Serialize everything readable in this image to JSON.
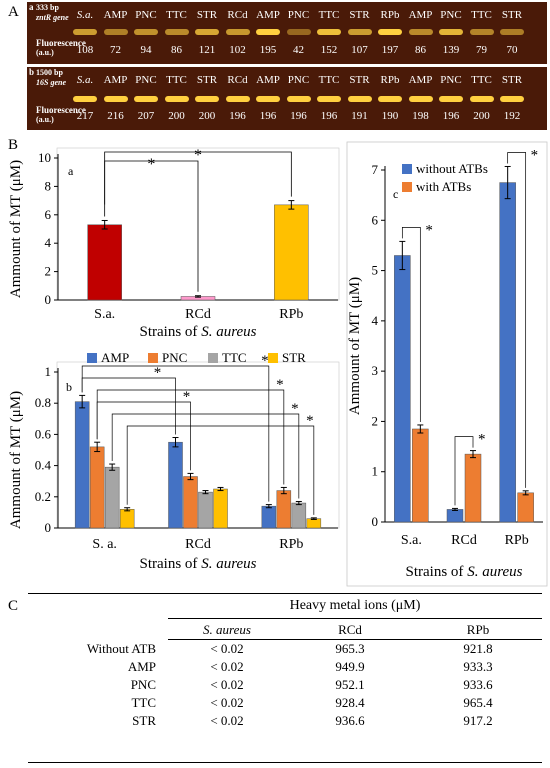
{
  "panels": {
    "A": "A",
    "B": "B",
    "C": "C"
  },
  "gel_a": {
    "sub": "a",
    "marker": "333 bp",
    "gene_label": "zntR gene",
    "lanes": [
      "S.a.",
      "AMP",
      "PNC",
      "TTC",
      "STR",
      "RCd",
      "AMP",
      "PNC",
      "TTC",
      "STR",
      "RPb",
      "AMP",
      "PNC",
      "TTC",
      "STR"
    ],
    "fluor_label": "Fluorescence",
    "unit_label": "(a.u.)",
    "values": [
      "108",
      "72",
      "94",
      "86",
      "121",
      "102",
      "195",
      "42",
      "152",
      "107",
      "197",
      "86",
      "139",
      "79",
      "70"
    ]
  },
  "gel_b": {
    "sub": "b",
    "marker": "1500 bp",
    "gene_label": "16S gene",
    "lanes": [
      "S.a.",
      "AMP",
      "PNC",
      "TTC",
      "STR",
      "RCd",
      "AMP",
      "PNC",
      "TTC",
      "STR",
      "RPb",
      "AMP",
      "PNC",
      "TTC",
      "STR"
    ],
    "fluor_label": "Fluorescence",
    "unit_label": "(a.u.)",
    "values": [
      "217",
      "216",
      "207",
      "200",
      "200",
      "196",
      "196",
      "196",
      "196",
      "191",
      "190",
      "198",
      "196",
      "200",
      "192"
    ]
  },
  "chart_data": [
    {
      "type": "bar",
      "panel": "a",
      "categories": [
        "S.a.",
        "RCd",
        "RPb"
      ],
      "values": [
        5.3,
        0.25,
        6.7
      ],
      "errors": [
        0.3,
        0.05,
        0.3
      ],
      "colors": [
        "#c00000",
        "#ff99cc",
        "#ffc000"
      ],
      "ylabel": "Ammount of MT (μM)",
      "xlabel_prefix": "Strains of ",
      "xlabel_italic": "S. aureus",
      "ylim": [
        0,
        10
      ],
      "yticks": [
        "0",
        "2",
        "4",
        "6",
        "8",
        "10"
      ],
      "significance": [
        "*",
        "*"
      ]
    },
    {
      "type": "bar",
      "panel": "b",
      "categories": [
        "S. a.",
        "RCd",
        "RPb"
      ],
      "series": [
        {
          "name": "AMP",
          "color": "#4472c4",
          "values": [
            0.81,
            0.55,
            0.14
          ],
          "errors": [
            0.04,
            0.03,
            0.01
          ]
        },
        {
          "name": "PNC",
          "color": "#ed7d31",
          "values": [
            0.52,
            0.33,
            0.24
          ],
          "errors": [
            0.03,
            0.02,
            0.02
          ]
        },
        {
          "name": "TTC",
          "color": "#a5a5a5",
          "values": [
            0.39,
            0.23,
            0.16
          ],
          "errors": [
            0.02,
            0.01,
            0.01
          ]
        },
        {
          "name": "STR",
          "color": "#ffc000",
          "values": [
            0.12,
            0.25,
            0.06
          ],
          "errors": [
            0.01,
            0.01,
            0.005
          ]
        }
      ],
      "ylabel": "Ammount of MT (μM)",
      "xlabel_prefix": "Strains of ",
      "xlabel_italic": "S. aureus",
      "ylim": [
        0,
        1
      ],
      "yticks": [
        "0",
        "0.2",
        "0.4",
        "0.6",
        "0.8",
        "1"
      ],
      "legend_position": "top",
      "significance": [
        "*",
        "*",
        "*",
        "*",
        "*",
        "*"
      ]
    },
    {
      "type": "bar",
      "panel": "c",
      "categories": [
        "S.a.",
        "RCd",
        "RPb"
      ],
      "series": [
        {
          "name": "without ATBs",
          "color": "#4472c4",
          "values": [
            5.3,
            0.25,
            6.75
          ],
          "errors": [
            0.28,
            0.02,
            0.32
          ]
        },
        {
          "name": "with ATBs",
          "color": "#ed7d31",
          "values": [
            1.85,
            1.35,
            0.58
          ],
          "errors": [
            0.08,
            0.07,
            0.04
          ]
        }
      ],
      "ylabel": "Ammount of MT (μM)",
      "xlabel_prefix": "Strains of ",
      "xlabel_italic": "S. aureus",
      "ylim": [
        0,
        7
      ],
      "yticks": [
        "0",
        "1",
        "2",
        "3",
        "4",
        "5",
        "6",
        "7"
      ],
      "legend_position": "top-left",
      "significance": [
        "*",
        "*",
        "*"
      ]
    }
  ],
  "table": {
    "group_header": "Heavy metal ions (μM)",
    "columns": [
      "S. aureus",
      "RCd",
      "RPb"
    ],
    "rows": [
      {
        "label": "Without ATB",
        "cells": [
          "< 0.02",
          "965.3",
          "921.8"
        ]
      },
      {
        "label": "AMP",
        "cells": [
          "< 0.02",
          "949.9",
          "933.3"
        ]
      },
      {
        "label": "PNC",
        "cells": [
          "< 0.02",
          "952.1",
          "933.6"
        ]
      },
      {
        "label": "TTC",
        "cells": [
          "< 0.02",
          "928.4",
          "965.4"
        ]
      },
      {
        "label": "STR",
        "cells": [
          "< 0.02",
          "936.6",
          "917.2"
        ]
      }
    ]
  }
}
